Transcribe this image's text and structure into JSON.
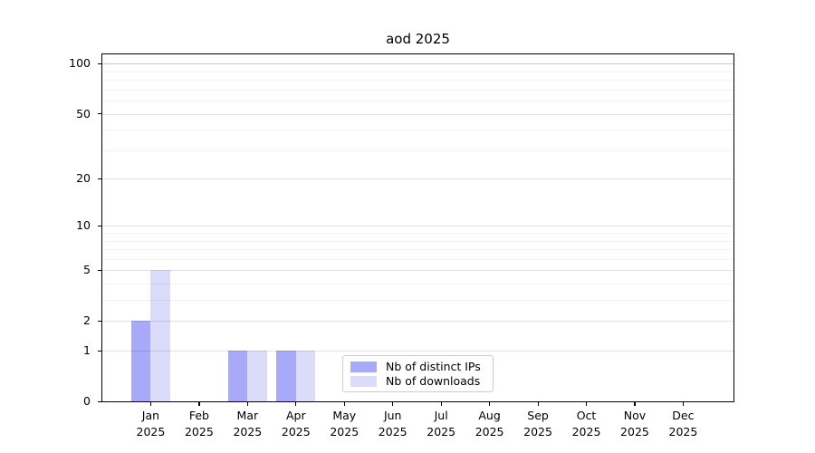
{
  "chart_data": {
    "type": "bar",
    "title": "aod 2025",
    "categories": [
      {
        "month": "Jan",
        "year": "2025"
      },
      {
        "month": "Feb",
        "year": "2025"
      },
      {
        "month": "Mar",
        "year": "2025"
      },
      {
        "month": "Apr",
        "year": "2025"
      },
      {
        "month": "May",
        "year": "2025"
      },
      {
        "month": "Jun",
        "year": "2025"
      },
      {
        "month": "Jul",
        "year": "2025"
      },
      {
        "month": "Aug",
        "year": "2025"
      },
      {
        "month": "Sep",
        "year": "2025"
      },
      {
        "month": "Oct",
        "year": "2025"
      },
      {
        "month": "Nov",
        "year": "2025"
      },
      {
        "month": "Dec",
        "year": "2025"
      }
    ],
    "series": [
      {
        "name": "Nb of distinct IPs",
        "color": "#a9a9f9",
        "values": [
          2,
          0,
          1,
          1,
          0,
          0,
          0,
          0,
          0,
          0,
          0,
          0
        ]
      },
      {
        "name": "Nb of downloads",
        "color": "#dbdbfa",
        "values": [
          5,
          0,
          1,
          1,
          0,
          0,
          0,
          0,
          0,
          0,
          0,
          0
        ]
      }
    ],
    "xlabel": "",
    "ylabel": "",
    "yscale": "log1p",
    "yticks": [
      0,
      1,
      2,
      5,
      10,
      20,
      50,
      100
    ],
    "yminorticks": [
      3,
      4,
      6,
      7,
      8,
      9,
      30,
      40,
      60,
      70,
      80,
      90
    ],
    "ylim": [
      0,
      114
    ],
    "grid": "on",
    "legend_position": "inside-bottom-center",
    "background": "#ffffff",
    "text_color": "#000000"
  }
}
